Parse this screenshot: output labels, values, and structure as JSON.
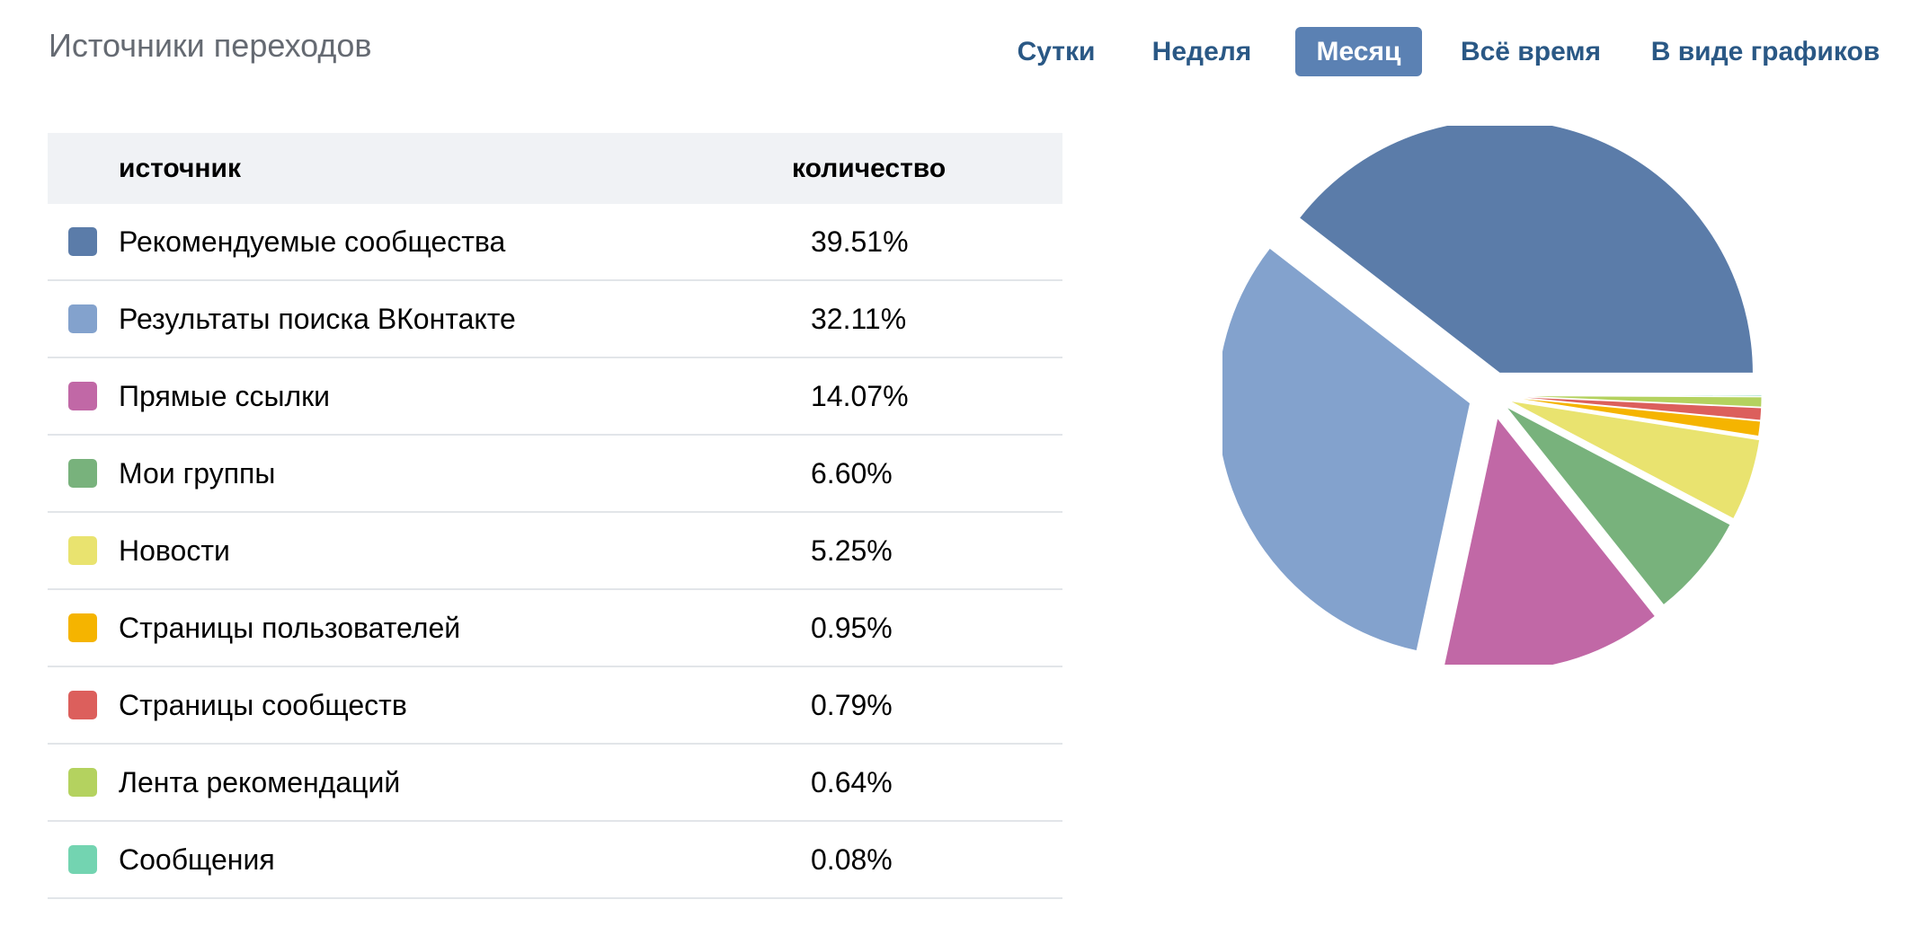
{
  "header": {
    "title": "Источники переходов"
  },
  "tabs": [
    {
      "label": "Сутки",
      "active": false
    },
    {
      "label": "Неделя",
      "active": false
    },
    {
      "label": "Месяц",
      "active": true
    },
    {
      "label": "Всё время",
      "active": false
    },
    {
      "label": "В виде графиков",
      "active": false
    }
  ],
  "table": {
    "columns": {
      "source": "источник",
      "count": "количество"
    },
    "rows": [
      {
        "label": "Рекомендуемые сообщества",
        "value": "39.51%",
        "color": "#5b7ca9"
      },
      {
        "label": "Результаты поиска ВКонтакте",
        "value": "32.11%",
        "color": "#83a2cd"
      },
      {
        "label": "Прямые ссылки",
        "value": "14.07%",
        "color": "#c168a6"
      },
      {
        "label": "Мои группы",
        "value": "6.60%",
        "color": "#78b27c"
      },
      {
        "label": "Новости",
        "value": "5.25%",
        "color": "#e9e36f"
      },
      {
        "label": "Страницы пользователей",
        "value": "0.95%",
        "color": "#f5b400"
      },
      {
        "label": "Страницы сообществ",
        "value": "0.79%",
        "color": "#dc5f5c"
      },
      {
        "label": "Лента рекомендаций",
        "value": "0.64%",
        "color": "#b4d25f"
      },
      {
        "label": "Сообщения",
        "value": "0.08%",
        "color": "#73d4b1"
      }
    ]
  },
  "chart_data": {
    "type": "pie",
    "categories": [
      "Рекомендуемые сообщества",
      "Результаты поиска ВКонтакте",
      "Прямые ссылки",
      "Мои группы",
      "Новости",
      "Страницы пользователей",
      "Страницы сообществ",
      "Лента рекомендаций",
      "Сообщения"
    ],
    "values": [
      39.51,
      32.11,
      14.07,
      6.6,
      5.25,
      0.95,
      0.79,
      0.64,
      0.08
    ],
    "colors": [
      "#5b7ca9",
      "#83a2cd",
      "#c168a6",
      "#78b27c",
      "#e9e36f",
      "#f5b400",
      "#dc5f5c",
      "#b4d25f",
      "#73d4b1"
    ],
    "title": "",
    "legend": "table-left"
  }
}
